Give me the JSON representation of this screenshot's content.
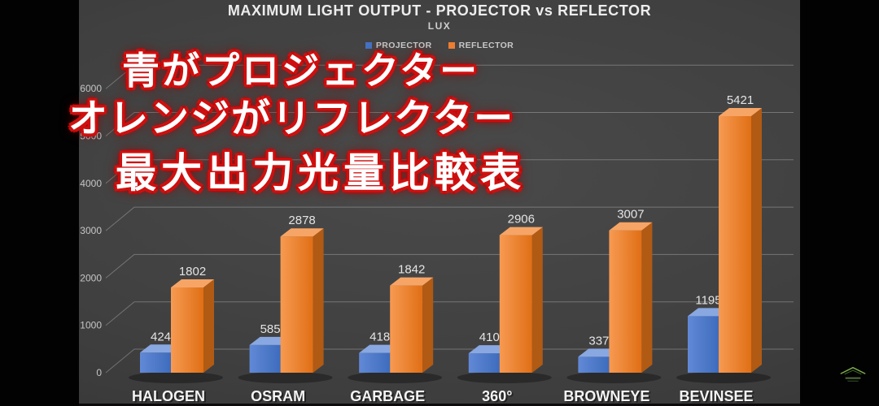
{
  "title": "MAXIMUM LIGHT OUTPUT - PROJECTOR vs REFLECTOR",
  "subtitle": "LUX",
  "legend": [
    {
      "label": "PROJECTOR",
      "color": "#4472c4"
    },
    {
      "label": "REFLECTOR",
      "color": "#ed7d31"
    }
  ],
  "overlay_lines": [
    "青がプロジェクター",
    "オレンジがリフレクター",
    "最大出力光量比較表"
  ],
  "chart_data": {
    "type": "bar",
    "style": "3d-column",
    "title": "MAXIMUM LIGHT OUTPUT - PROJECTOR vs REFLECTOR",
    "ylabel": "LUX",
    "categories": [
      "HALOGEN",
      "OSRAM",
      "GARBAGE",
      "360°",
      "BROWNEYE",
      "BEVINSEE"
    ],
    "series": [
      {
        "name": "PROJECTOR",
        "color": "#4472c4",
        "values": [
          424,
          585,
          418,
          410,
          337,
          1195
        ]
      },
      {
        "name": "REFLECTOR",
        "color": "#ed7d31",
        "values": [
          1802,
          2878,
          1842,
          2906,
          3007,
          5421
        ]
      }
    ],
    "yticks": [
      0,
      1000,
      2000,
      3000,
      4000,
      5000,
      6000
    ],
    "ylim": [
      0,
      6000
    ],
    "grid": true,
    "legend_position": "top"
  },
  "colors": {
    "background": "#404040",
    "projector_blue": "#4472c4",
    "reflector_orange": "#ed7d31",
    "caption_outline_red": "#c20505",
    "watermark_green": "#7fae4a"
  },
  "watermark": {
    "icon": "mountain-chevron-logo"
  }
}
